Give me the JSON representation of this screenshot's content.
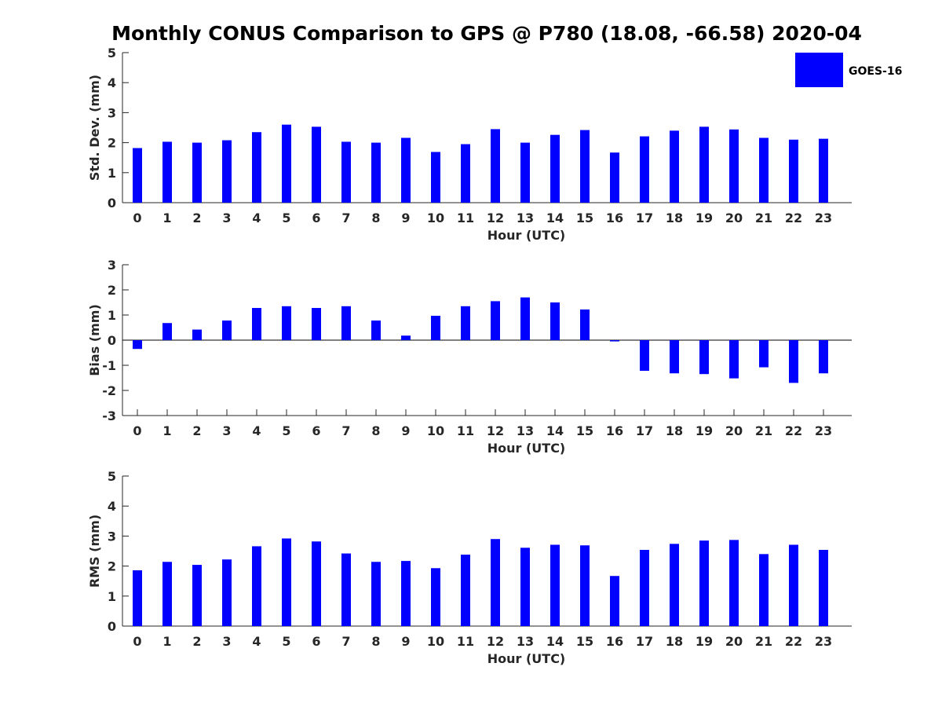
{
  "title": "Monthly CONUS Comparison to GPS @ P780 (18.08, -66.58) 2020-04",
  "legend": {
    "label": "GOES-16",
    "color": "#0000ff"
  },
  "chart_data": [
    {
      "type": "bar",
      "title": "",
      "xlabel": "Hour (UTC)",
      "ylabel": "Std. Dev. (mm)",
      "ylim": [
        0,
        5
      ],
      "yticks": [
        0,
        1,
        2,
        3,
        4,
        5
      ],
      "categories": [
        "0",
        "1",
        "2",
        "3",
        "4",
        "5",
        "6",
        "7",
        "8",
        "9",
        "10",
        "11",
        "12",
        "13",
        "14",
        "15",
        "16",
        "17",
        "18",
        "19",
        "20",
        "21",
        "22",
        "23"
      ],
      "series": [
        {
          "name": "GOES-16",
          "color": "#0000ff",
          "values": [
            1.82,
            2.03,
            2.0,
            2.08,
            2.35,
            2.6,
            2.53,
            2.03,
            2.0,
            2.16,
            1.69,
            1.95,
            2.45,
            2.0,
            2.26,
            2.42,
            1.67,
            2.21,
            2.4,
            2.53,
            2.44,
            2.16,
            2.1,
            2.13
          ]
        }
      ],
      "legend": "top-right",
      "grid": false
    },
    {
      "type": "bar",
      "title": "",
      "xlabel": "Hour (UTC)",
      "ylabel": "Bias (mm)",
      "ylim": [
        -3,
        3
      ],
      "yticks": [
        -3,
        -2,
        -1,
        0,
        1,
        2,
        3
      ],
      "categories": [
        "0",
        "1",
        "2",
        "3",
        "4",
        "5",
        "6",
        "7",
        "8",
        "9",
        "10",
        "11",
        "12",
        "13",
        "14",
        "15",
        "16",
        "17",
        "18",
        "19",
        "20",
        "21",
        "22",
        "23"
      ],
      "series": [
        {
          "name": "GOES-16",
          "color": "#0000ff",
          "values": [
            -0.35,
            0.68,
            0.42,
            0.78,
            1.28,
            1.35,
            1.28,
            1.35,
            0.78,
            0.18,
            0.97,
            1.35,
            1.55,
            1.7,
            1.5,
            1.22,
            -0.05,
            -1.22,
            -1.32,
            -1.35,
            -1.52,
            -1.08,
            -1.7,
            -1.32
          ]
        }
      ],
      "grid": false
    },
    {
      "type": "bar",
      "title": "",
      "xlabel": "Hour (UTC)",
      "ylabel": "RMS (mm)",
      "ylim": [
        0,
        5
      ],
      "yticks": [
        0,
        1,
        2,
        3,
        4,
        5
      ],
      "categories": [
        "0",
        "1",
        "2",
        "3",
        "4",
        "5",
        "6",
        "7",
        "8",
        "9",
        "10",
        "11",
        "12",
        "13",
        "14",
        "15",
        "16",
        "17",
        "18",
        "19",
        "20",
        "21",
        "22",
        "23"
      ],
      "series": [
        {
          "name": "GOES-16",
          "color": "#0000ff",
          "values": [
            1.86,
            2.14,
            2.04,
            2.22,
            2.66,
            2.92,
            2.82,
            2.42,
            2.14,
            2.17,
            1.93,
            2.38,
            2.9,
            2.61,
            2.71,
            2.69,
            1.67,
            2.54,
            2.74,
            2.85,
            2.87,
            2.4,
            2.71,
            2.54
          ]
        }
      ],
      "grid": false
    }
  ]
}
